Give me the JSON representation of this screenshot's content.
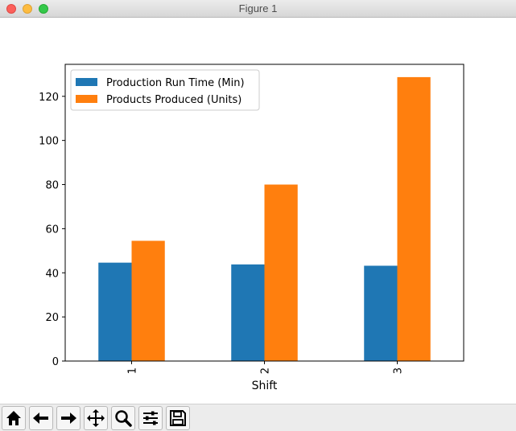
{
  "window": {
    "title": "Figure 1"
  },
  "toolbar": {
    "buttons": [
      {
        "icon": "home-icon"
      },
      {
        "icon": "back-arrow-icon"
      },
      {
        "icon": "forward-arrow-icon"
      },
      {
        "icon": "pan-icon"
      },
      {
        "icon": "zoom-icon"
      },
      {
        "icon": "configure-subplots-icon"
      },
      {
        "icon": "save-icon"
      }
    ]
  },
  "chart_data": {
    "type": "bar",
    "categories": [
      "1",
      "2",
      "3"
    ],
    "series": [
      {
        "name": "Production Run Time (Min)",
        "values": [
          44.6,
          43.8,
          43.2
        ],
        "color": "#1f77b4"
      },
      {
        "name": "Products Produced (Units)",
        "values": [
          54.5,
          80.0,
          128.7
        ],
        "color": "#ff7f0e"
      }
    ],
    "title": "",
    "xlabel": "Shift",
    "ylabel": "",
    "ylim": [
      0,
      134.5
    ],
    "yticks": [
      0,
      20,
      40,
      60,
      80,
      100,
      120
    ],
    "xtick_rotation": 90,
    "grid": false,
    "legend_position": "upper-left"
  }
}
